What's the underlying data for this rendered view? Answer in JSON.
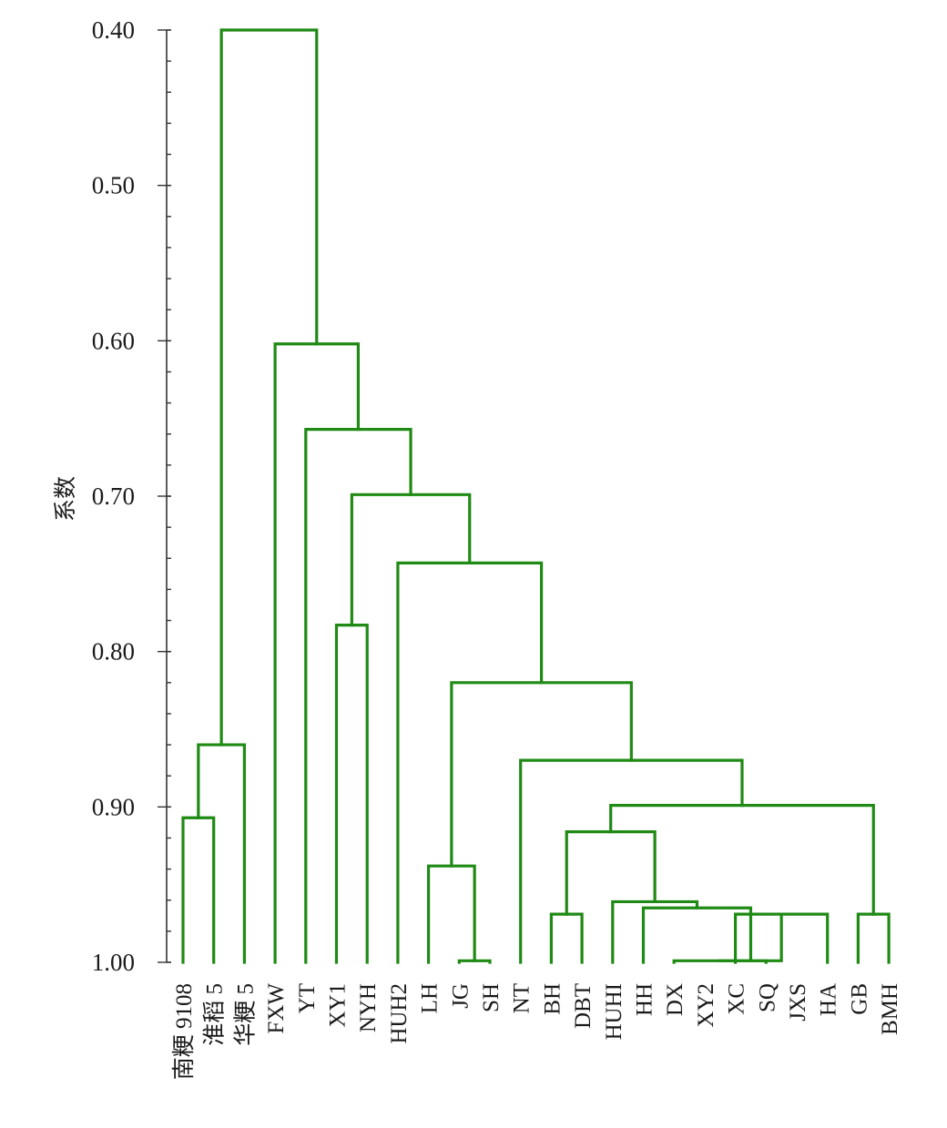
{
  "chart_data": {
    "type": "dendrogram",
    "ylabel": "系数",
    "ylim": [
      0.4,
      1.0
    ],
    "y_ticks": [
      {
        "value": 0.4,
        "label": "0.40"
      },
      {
        "value": 0.5,
        "label": "0.50"
      },
      {
        "value": 0.6,
        "label": "0.60"
      },
      {
        "value": 0.7,
        "label": "0.70"
      },
      {
        "value": 0.8,
        "label": "0.80"
      },
      {
        "value": 0.9,
        "label": "0.90"
      },
      {
        "value": 1.0,
        "label": "1.00"
      }
    ],
    "minor_tick_step": 0.02,
    "leaves": [
      "南粳 9108",
      "淮稻 5",
      "华粳 5",
      "FXW",
      "YT",
      "XY1",
      "NYH",
      "HUH2",
      "LH",
      "JG",
      "SH",
      "NT",
      "BH",
      "DBT",
      "HUHI",
      "HH",
      "DX",
      "XY2",
      "XC",
      "SQ",
      "JXS",
      "HA",
      "GB",
      "BMH"
    ],
    "merges": [
      {
        "left": "南粳 9108",
        "right": "淮稻 5",
        "height": 0.907
      },
      {
        "left": "BH",
        "right": "DBT",
        "height": 0.969
      },
      {
        "left": "XC",
        "right": "HA",
        "height": 0.969
      },
      {
        "left": "GB",
        "right": "BMH",
        "height": 0.969
      },
      {
        "left": "JG",
        "right": "SH",
        "height": 0.999
      },
      {
        "left": "DX",
        "right": "SQ",
        "height": 0.999
      },
      {
        "left": "DX+SQ",
        "right": "XC+HA",
        "height": 0.999
      },
      {
        "left": "HH",
        "right": "DX+SQ+XC+HA",
        "height": 0.965
      },
      {
        "left": "HUHI",
        "right": "HH+DX+SQ+XC+HA",
        "height": 0.961
      },
      {
        "left": "LH",
        "right": "JG+SH",
        "height": 0.938
      },
      {
        "left": "BH+DBT",
        "right": "HUHI cluster",
        "height": 0.916
      },
      {
        "left": "BH..HA",
        "right": "GB+BMH",
        "height": 0.899
      },
      {
        "left": "NT",
        "right": "BH..BMH",
        "height": 0.87
      },
      {
        "left": "南粳 9108+淮稻 5",
        "right": "华粳 5",
        "height": 0.86
      },
      {
        "left": "LH+JG+SH",
        "right": "NT..BMH",
        "height": 0.82
      },
      {
        "left": "XY1",
        "right": "NYH",
        "height": 0.783
      },
      {
        "left": "HUH2",
        "right": "LH..BMH",
        "height": 0.743
      },
      {
        "left": "XY1+NYH",
        "right": "HUH2..BMH",
        "height": 0.699
      },
      {
        "left": "YT",
        "right": "XY1..BMH",
        "height": 0.657
      },
      {
        "left": "FXW",
        "right": "YT..BMH",
        "height": 0.602
      },
      {
        "left": "南粳 9108+淮稻 5+华粳 5",
        "right": "FXW..BMH",
        "height": 0.4
      }
    ],
    "line_color": "#1f8a14",
    "grid": false
  }
}
